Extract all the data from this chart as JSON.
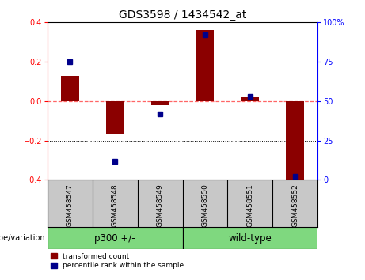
{
  "title": "GDS3598 / 1434542_at",
  "samples": [
    "GSM458547",
    "GSM458548",
    "GSM458549",
    "GSM458550",
    "GSM458551",
    "GSM458552"
  ],
  "red_bars": [
    0.13,
    -0.17,
    -0.02,
    0.36,
    0.02,
    -0.4
  ],
  "blue_dots_pct": [
    75,
    12,
    42,
    92,
    53,
    2
  ],
  "group1_label": "p300 +/-",
  "group1_count": 3,
  "group2_label": "wild-type",
  "group2_count": 3,
  "group_label": "genotype/variation",
  "ylim_left": [
    -0.4,
    0.4
  ],
  "ylim_right": [
    0,
    100
  ],
  "yticks_left": [
    -0.4,
    -0.2,
    0.0,
    0.2,
    0.4
  ],
  "yticks_right": [
    0,
    25,
    50,
    75,
    100
  ],
  "bar_color": "#8B0000",
  "dot_color": "#00008B",
  "zero_line_color": "#FF6666",
  "grid_color": "#000000",
  "background_color": "#FFFFFF",
  "label_area_color": "#C8C8C8",
  "group_box_color": "#7FD87F",
  "bar_width": 0.4
}
